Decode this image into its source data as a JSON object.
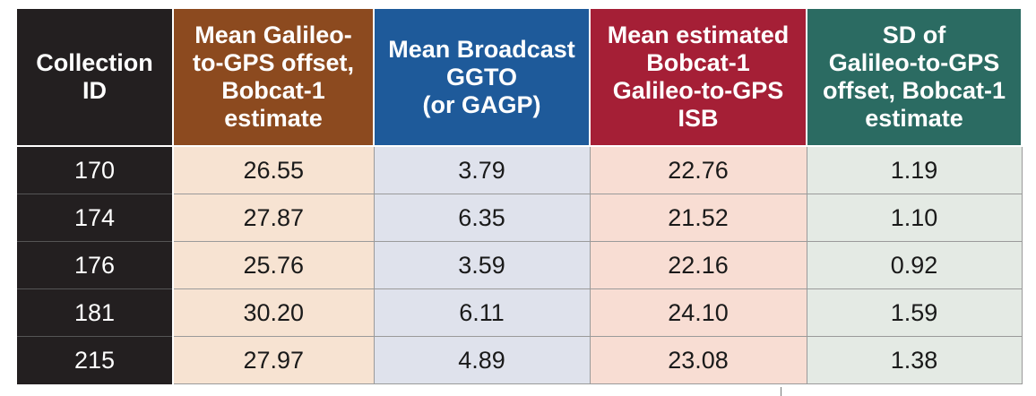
{
  "table": {
    "columns": [
      {
        "label_lines": [
          "Collection",
          "ID"
        ],
        "bg": "#231f20"
      },
      {
        "label_lines": [
          "Mean Galileo-",
          "to-GPS offset,",
          "Bobcat-1",
          "estimate"
        ],
        "bg": "#8c4a1f"
      },
      {
        "label_lines": [
          "Mean Broadcast",
          "GGTO",
          "(or GAGP)"
        ],
        "bg": "#1e5a9a"
      },
      {
        "label_lines": [
          "Mean estimated",
          "Bobcat-1",
          "Galileo-to-GPS",
          "ISB"
        ],
        "bg": "#a51f36"
      },
      {
        "label_lines": [
          "SD of",
          "Galileo-to-GPS",
          "offset, Bobcat-1",
          "estimate"
        ],
        "bg": "#2b6b62"
      }
    ],
    "rows": [
      [
        "170",
        "26.55",
        "3.79",
        "22.76",
        "1.19"
      ],
      [
        "174",
        "27.87",
        "6.35",
        "21.52",
        "1.10"
      ],
      [
        "176",
        "25.76",
        "3.59",
        "22.16",
        "0.92"
      ],
      [
        "181",
        "30.20",
        "6.11",
        "24.10",
        "1.59"
      ],
      [
        "215",
        "27.97",
        "4.89",
        "23.08",
        "1.38"
      ]
    ]
  }
}
